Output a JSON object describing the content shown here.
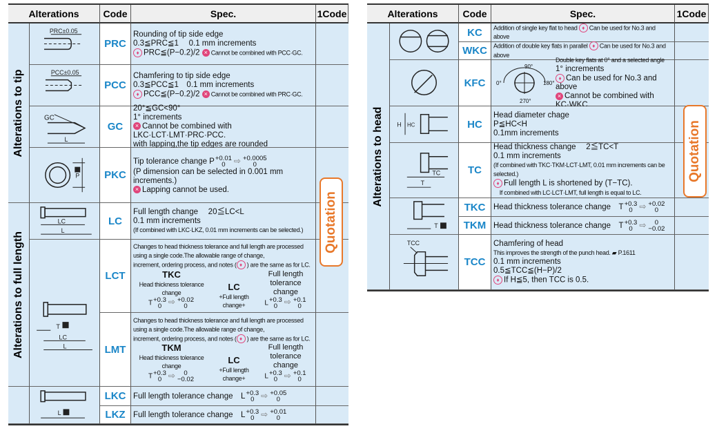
{
  "headers": {
    "alterations": "Alterations",
    "code": "Code",
    "spec": "Spec.",
    "one_code": "1Code"
  },
  "quotation_label": "Quotation",
  "colors": {
    "code": "#1a86c8",
    "cell": "#d9eaf7",
    "quotation": "#e8782a",
    "note": "#e0457b"
  },
  "left": {
    "groups": [
      {
        "label": "Alterations to tip"
      },
      {
        "label": "Alterations to full length"
      },
      {
        "label": ""
      }
    ],
    "rows": [
      {
        "code": "PRC",
        "fig": "prc",
        "fig_label": "PRC±0.05",
        "lines": [
          "Rounding of tip side edge",
          "0.3≦PRC≦1　 0.1 mm increments",
          [
            {
              "icon": "pin"
            },
            "PRC≦(P−0.2)/2 ",
            {
              "icon": "ban"
            },
            {
              "sm": "Cannot be combined with PCC·GC."
            }
          ]
        ]
      },
      {
        "code": "PCC",
        "fig": "pcc",
        "fig_label": "PCC±0.05",
        "lines": [
          "Chamfering to tip side edge",
          "0.3≦PCC≦1　0.1 mm increments",
          [
            {
              "icon": "pin"
            },
            "PCC≦(P−0.2)/2 ",
            {
              "icon": "ban"
            },
            {
              "sm": "Cannot be combined with PRC·GC."
            }
          ]
        ]
      },
      {
        "code": "GC",
        "fig": "gc",
        "fig_label": "GC",
        "fig_label2": "L",
        "lines": [
          "20°≦GC<90°",
          "1° increments",
          [
            {
              "icon": "ban"
            },
            "Cannot be combined with LKC·LCT·LMT·PRC·PCC."
          ],
          "with lapping,the tip edges are rounded"
        ]
      },
      {
        "code": "PKC",
        "fig": "pkc",
        "fig_label": "P",
        "lines": [
          [
            "Tip tolerance change P",
            {
              "u": "+0.01",
              "l": "0"
            },
            {
              "arrow": "⇨"
            },
            {
              "u": "+0.0005",
              "l": "0"
            }
          ],
          "(P dimension can be selected in 0.001 mm increments.)",
          [
            {
              "icon": "ban"
            },
            "Lapping cannot be used."
          ]
        ]
      },
      {
        "code": "LC",
        "fig": "lc",
        "fig_label": "LC",
        "fig_label2": "L",
        "lines": [
          "Full length change　 20≦LC<L",
          "0.1 mm increments",
          [
            {
              "sm": "(If combined with LKC·LKZ, 0.01 mm increments can be selected.)"
            }
          ]
        ]
      },
      {
        "code": "LCT",
        "fig": "lct",
        "fig_label": "T",
        "fig_label2": "LC",
        "fig_label3": "L",
        "lines": [
          [
            {
              "sm": "Changes to head thickness tolerance and full length are processed"
            }
          ],
          [
            {
              "sm": "using a single code.The allowable range of change,"
            }
          ],
          [
            {
              "sm": "increment, ordering process, and notes ("
            },
            {
              "icon": "pin"
            },
            {
              "sm": ") are the same as for LC."
            }
          ]
        ],
        "combo": {
          "a_title": "TKC",
          "a_sub": "Head thickness tolerance change",
          "a_base": "T",
          "a_from": {
            "u": "+0.3",
            "l": "0"
          },
          "a_to": {
            "u": "+0.02",
            "l": "0"
          },
          "b_title": "LC",
          "b_sub": "+Full length change+",
          "c_title": "Full length tolerance change",
          "c_base": "L",
          "c_from": {
            "u": "+0.3",
            "l": "0"
          },
          "c_to": {
            "u": "+0.1",
            "l": "0"
          }
        }
      },
      {
        "code": "LMT",
        "lines": [
          [
            {
              "sm": "Changes to head thickness tolerance and full length are processed"
            }
          ],
          [
            {
              "sm": "using a single code.The allowable range of change,"
            }
          ],
          [
            {
              "sm": "increment, ordering process, and notes ("
            },
            {
              "icon": "pin"
            },
            {
              "sm": ") are the same as for LC."
            }
          ]
        ],
        "combo": {
          "a_title": "TKM",
          "a_sub": "Head thickness tolerance change",
          "a_base": "T",
          "a_from": {
            "u": "+0.3",
            "l": "0"
          },
          "a_to": {
            "u": "0",
            "l": "−0.02"
          },
          "b_title": "LC",
          "b_sub": "+Full length change+",
          "c_title": "Full length tolerance change",
          "c_base": "L",
          "c_from": {
            "u": "+0.3",
            "l": "0"
          },
          "c_to": {
            "u": "+0.1",
            "l": "0"
          }
        }
      },
      {
        "code": "LKC",
        "fig": "lkc",
        "fig_label": "L",
        "lines": [
          [
            "Full length tolerance change　L",
            {
              "u": "+0.3",
              "l": "0"
            },
            {
              "arrow": "⇨"
            },
            {
              "u": "+0.05",
              "l": "0"
            }
          ]
        ]
      },
      {
        "code": "LKZ",
        "lines": [
          [
            "Full length tolerance change　L",
            {
              "u": "+0.3",
              "l": "0"
            },
            {
              "arrow": "⇨"
            },
            {
              "u": "+0.01",
              "l": "0"
            }
          ]
        ]
      }
    ]
  },
  "right": {
    "groups": [
      {
        "label": "Alterations to head"
      }
    ],
    "rows": [
      {
        "code": "KC",
        "fig": "kc",
        "lines": [
          [
            {
              "sm": "Addition of single key flat to head "
            },
            {
              "icon": "pin"
            },
            {
              "sm": "Can be used for No.3 and above"
            }
          ]
        ]
      },
      {
        "code": "WKC",
        "lines": [
          [
            {
              "sm": "Addition of double key flats in parallel "
            },
            {
              "icon": "pin"
            },
            {
              "sm": "Can be used for No.3 and above"
            }
          ]
        ]
      },
      {
        "code": "KFC",
        "fig": "kfc",
        "angles": [
          "90°",
          "0°",
          "180°",
          "270°"
        ],
        "lines": [
          [
            {
              "sm": "Double key flats at 0° and a selected angle"
            }
          ],
          "1° increments",
          [
            {
              "icon": "pin"
            },
            "Can be used for No.3 and above"
          ],
          [
            {
              "icon": "ban"
            },
            "Cannot be combined with KC·WKC."
          ]
        ]
      },
      {
        "code": "HC",
        "fig": "hc",
        "fig_label": "H",
        "fig_label2": "HC",
        "lines": [
          "Head diameter chage",
          "P≦HC<H",
          "0.1mm increments"
        ]
      },
      {
        "code": "TC",
        "fig": "tc",
        "fig_label": "TC",
        "fig_label2": "T",
        "lines": [
          "Head thickness change　 2≦TC<T",
          "0.1 mm increments",
          [
            {
              "sm": "(If combined with TKC·TKM·LCT·LMT, 0.01 mm increments can be selected.)"
            }
          ],
          [
            {
              "icon": "pin"
            },
            "Full length L is shortened by (T−TC)."
          ],
          [
            {
              "sm": "　If combined with LC·LCT·LMT, full length is equal to LC."
            }
          ]
        ]
      },
      {
        "code": "TKC",
        "fig": "tkc",
        "fig_label": "T",
        "lines": [
          [
            "Head thickness tolerance change　T",
            {
              "u": "+0.3",
              "l": "0"
            },
            {
              "arrow": "⇨"
            },
            {
              "u": "+0.02",
              "l": "0"
            }
          ]
        ]
      },
      {
        "code": "TKM",
        "lines": [
          [
            "Head thickness tolerance change　T",
            {
              "u": "+0.3",
              "l": "0"
            },
            {
              "arrow": "⇨"
            },
            {
              "u": "0",
              "l": "−0.02"
            }
          ]
        ]
      },
      {
        "code": "TCC",
        "fig": "tcc",
        "fig_label": "TCC",
        "lines": [
          "Chamfering of head",
          [
            {
              "sm": "This improves the strength of the punch head. ▰ P.1611"
            }
          ],
          "0.1 mm increments",
          "0.5≦TCC≦(H−P)/2",
          [
            {
              "icon": "pin"
            },
            "If H≦5, then TCC is 0.5."
          ]
        ]
      }
    ]
  }
}
